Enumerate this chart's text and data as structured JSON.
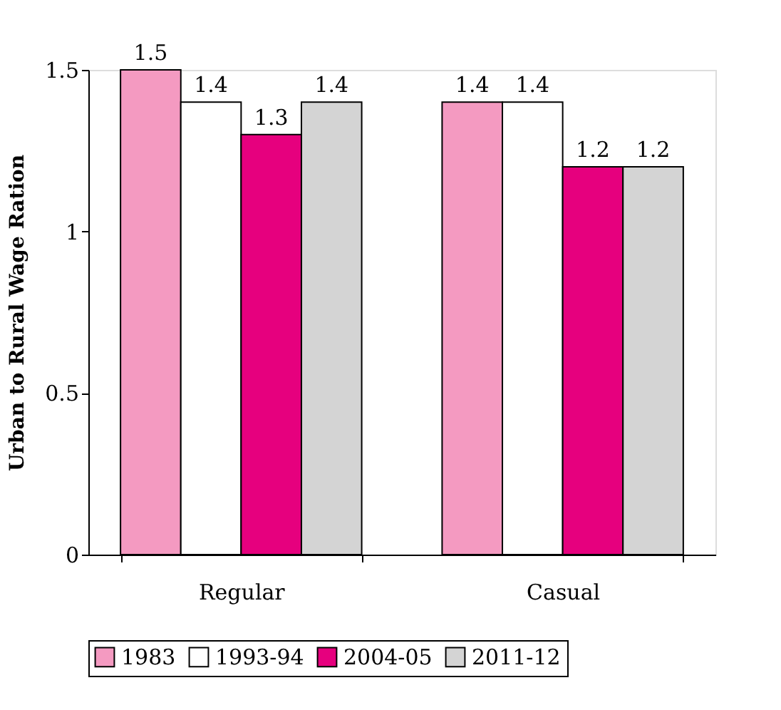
{
  "chart_data": {
    "type": "bar",
    "ylabel": "Urban to Rural Wage Ration",
    "categories": [
      "Regular",
      "Casual"
    ],
    "series": [
      {
        "name": "1983",
        "color": "#f49ac1",
        "values": [
          1.5,
          1.4
        ]
      },
      {
        "name": "1993-94",
        "color": "#ffffff",
        "values": [
          1.4,
          1.4
        ]
      },
      {
        "name": "2004-05",
        "color": "#e6007e",
        "values": [
          1.3,
          1.2
        ]
      },
      {
        "name": "2011-12",
        "color": "#d4d4d4",
        "values": [
          1.4,
          1.2
        ]
      }
    ],
    "ylim": [
      0,
      1.5
    ],
    "yticks": [
      0,
      0.5,
      1,
      1.5
    ],
    "grid": false,
    "legend": "bottom",
    "data_labels": true
  }
}
